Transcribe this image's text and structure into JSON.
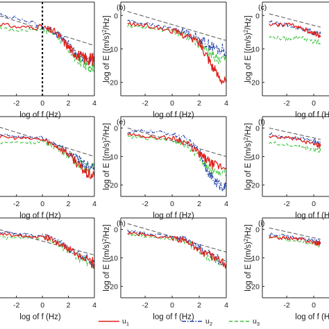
{
  "chart_data": {
    "type": "line",
    "x_axis": {
      "label": "log of f (Hz)",
      "ticks": [
        -2,
        0,
        2,
        4
      ],
      "range": [
        -3.8,
        4
      ]
    },
    "y_axis": {
      "label_main": "log of E [(m/s)",
      "label_sup": "2",
      "label_end": "/Hz]",
      "ticks": [
        0,
        -10,
        -20
      ],
      "range": [
        -24,
        4
      ]
    },
    "legend": {
      "placement": "bottom",
      "items": [
        {
          "name": "u",
          "sub": "1",
          "color": "#e0201a",
          "dash": "solid"
        },
        {
          "name": "u",
          "sub": "2",
          "color": "#1f3fa8",
          "dash": "dashdot"
        },
        {
          "name": "u",
          "sub": "3",
          "color": "#3cc43c",
          "dash": "dashed"
        }
      ]
    },
    "colors": {
      "u1": "#e0201a",
      "u2": "#1f3fa8",
      "u3": "#3cc43c",
      "reference": "#555555",
      "marker": "#000000"
    },
    "reference_line": {
      "type": "-5/3 slope",
      "style": "dashed"
    },
    "panels": [
      {
        "label": "",
        "col": 0,
        "row": 0,
        "vline_x": 0,
        "series": {
          "u1": {
            "x": [
              -3.8,
              -2,
              0,
              1,
              1.8,
              2.4,
              3,
              3.6,
              4
            ],
            "y": [
              -2,
              -3.5,
              -3.5,
              -5,
              -8.5,
              -11,
              -12.5,
              -13,
              -13
            ]
          },
          "u2": {
            "x": [
              -3.8,
              -2,
              0,
              1,
              1.8,
              2.4,
              3,
              3.6,
              4
            ],
            "y": [
              1,
              -0.8,
              -3.2,
              -5,
              -8,
              -10.5,
              -12.5,
              -13,
              -13
            ]
          },
          "u3": {
            "x": [
              -3.8,
              -2,
              0,
              1,
              1.8,
              2.4,
              3,
              3.6,
              4
            ],
            "y": [
              -3,
              -4.5,
              -4,
              -5.5,
              -9,
              -12,
              -14,
              -15,
              -15
            ]
          }
        },
        "reference": {
          "x0": -3.8,
          "y0": 0.5,
          "x1": 4,
          "y1": -9
        }
      },
      {
        "label": "(b)",
        "col": 1,
        "row": 0,
        "series": {
          "u1": {
            "x": [
              -3.3,
              -2,
              0,
              1,
              2,
              2.6,
              3.2,
              4
            ],
            "y": [
              -2.5,
              -3,
              -4.5,
              -6,
              -8,
              -12,
              -17,
              -20
            ]
          },
          "u2": {
            "x": [
              -3.3,
              -2,
              0,
              1,
              2,
              2.6,
              3.2,
              4
            ],
            "y": [
              -1.5,
              -2.5,
              -4,
              -5,
              -7,
              -8.5,
              -10,
              -10.5
            ]
          },
          "u3": {
            "x": [
              -3.3,
              -2,
              0,
              1,
              2,
              2.6,
              3.2,
              4
            ],
            "y": [
              -3,
              -3.5,
              -4.5,
              -6,
              -8.5,
              -11,
              -12.5,
              -13
            ]
          }
        },
        "reference": {
          "x0": -3.3,
          "y0": 1.2,
          "x1": 4,
          "y1": -7.5
        }
      },
      {
        "label": "(c)",
        "col": 2,
        "row": 0,
        "series": {
          "u1": {
            "x": [
              -3.3,
              -2,
              -1,
              0,
              0.5
            ],
            "y": [
              -3,
              -2.5,
              -3.5,
              -5.5,
              -6
            ]
          },
          "u2": {
            "x": [
              -3.3,
              -2,
              -1,
              0,
              0.5
            ],
            "y": [
              -2,
              -3,
              -4,
              -5,
              -5.5
            ]
          },
          "u3": {
            "x": [
              -3.3,
              -2,
              -1,
              0,
              0.5
            ],
            "y": [
              -6.5,
              -7,
              -6.5,
              -8,
              -8
            ]
          }
        },
        "reference": {
          "x0": -3.3,
          "y0": 0.5,
          "x1": 0.5,
          "y1": -3.5
        }
      },
      {
        "label": "",
        "col": 0,
        "row": 1,
        "series": {
          "u1": {
            "x": [
              -3.8,
              -2,
              0,
              1,
              2,
              2.8,
              3.4,
              4
            ],
            "y": [
              -3,
              -3.5,
              -4,
              -6,
              -9,
              -13,
              -16,
              -17
            ]
          },
          "u2": {
            "x": [
              -3.8,
              -2,
              0,
              1,
              2,
              2.8,
              3.4,
              4
            ],
            "y": [
              -2,
              -3,
              -3.5,
              -5.5,
              -8.5,
              -11,
              -13,
              -13.5
            ]
          },
          "u3": {
            "x": [
              -3.8,
              -2,
              0,
              1,
              2,
              2.8,
              3.4,
              4
            ],
            "y": [
              -5,
              -5,
              -5,
              -6.5,
              -9.5,
              -12.5,
              -14,
              -14
            ]
          }
        },
        "reference": {
          "x0": -3.8,
          "y0": 1,
          "x1": 4,
          "y1": -10
        }
      },
      {
        "label": "(e)",
        "col": 1,
        "row": 1,
        "series": {
          "u1": {
            "x": [
              -3.3,
              -2,
              0,
              1,
              2,
              2.5,
              3,
              4
            ],
            "y": [
              -2,
              -3,
              -3.5,
              -5,
              -9,
              -11,
              -13,
              -14
            ]
          },
          "u2": {
            "x": [
              -3.3,
              -2,
              0,
              1,
              2,
              2.5,
              3,
              3.5,
              4
            ],
            "y": [
              -1.5,
              -1,
              -2,
              -4,
              -8,
              -14,
              -18,
              -20,
              -21
            ]
          },
          "u3": {
            "x": [
              -3.3,
              -2,
              0,
              1,
              2,
              2.5,
              3,
              4
            ],
            "y": [
              -3,
              -3.5,
              -4,
              -6,
              -10,
              -13,
              -15.5,
              -16.5
            ]
          }
        },
        "reference": {
          "x0": -3.3,
          "y0": 0,
          "x1": 4,
          "y1": -10
        }
      },
      {
        "label": "(f)",
        "col": 2,
        "row": 1,
        "series": {
          "u1": {
            "x": [
              -3.3,
              -2,
              -1,
              0,
              0.5
            ],
            "y": [
              -3,
              -3.5,
              -4,
              -6,
              -6.5
            ]
          },
          "u2": {
            "x": [
              -3.3,
              -2,
              -1,
              0,
              0.5
            ],
            "y": [
              -2,
              -3.5,
              -3.5,
              -4.5,
              -5
            ]
          },
          "u3": {
            "x": [
              -3.3,
              -2,
              -1,
              0,
              0.5
            ],
            "y": [
              -5,
              -6,
              -6.5,
              -7.5,
              -8
            ]
          }
        },
        "reference": {
          "x0": -3.3,
          "y0": 0,
          "x1": 0.5,
          "y1": -4
        }
      },
      {
        "label": "",
        "col": 0,
        "row": 2,
        "series": {
          "u1": {
            "x": [
              -3.8,
              -2,
              0,
              1,
              2,
              3,
              4
            ],
            "y": [
              -1.5,
              -2,
              -2.5,
              -4,
              -7,
              -10,
              -12
            ]
          },
          "u2": {
            "x": [
              -3.8,
              -2,
              0,
              1,
              2,
              3,
              4
            ],
            "y": [
              -1,
              -1.5,
              -2,
              -3.5,
              -6.5,
              -9.5,
              -11.5
            ]
          },
          "u3": {
            "x": [
              -3.8,
              -2,
              0,
              1,
              2,
              3,
              4
            ],
            "y": [
              -3,
              -3,
              -3,
              -4.5,
              -7.5,
              -10.5,
              -12.5
            ]
          }
        },
        "reference": {
          "x0": -3.8,
          "y0": 0.5,
          "x1": 4,
          "y1": -9
        }
      },
      {
        "label": "(h)",
        "col": 1,
        "row": 2,
        "series": {
          "u1": {
            "x": [
              -3.3,
              -2,
              0,
              1,
              2,
              3,
              4
            ],
            "y": [
              -1,
              -2,
              -3,
              -4,
              -7,
              -10,
              -12
            ]
          },
          "u2": {
            "x": [
              -3.3,
              -2,
              0,
              1,
              2,
              3,
              4
            ],
            "y": [
              -0.5,
              -1.5,
              -2.5,
              -3.5,
              -6.5,
              -9.5,
              -11.5
            ]
          },
          "u3": {
            "x": [
              -3.3,
              -2,
              0,
              1,
              2,
              3,
              4
            ],
            "y": [
              -1.5,
              -2.5,
              -3,
              -4.5,
              -7.5,
              -10.5,
              -12
            ]
          }
        },
        "reference": {
          "x0": -3.3,
          "y0": 2,
          "x1": 4,
          "y1": -8
        }
      },
      {
        "label": "(i)",
        "col": 2,
        "row": 2,
        "series": {
          "u1": {
            "x": [
              -3.3,
              -2,
              -1,
              0,
              0.5
            ],
            "y": [
              -3,
              -3,
              -3.5,
              -4.5,
              -5
            ]
          },
          "u2": {
            "x": [
              -3.3,
              -2,
              -1,
              0,
              0.5
            ],
            "y": [
              -1.5,
              -2.5,
              -3,
              -4,
              -4.5
            ]
          },
          "u3": {
            "x": [
              -3.3,
              -2,
              -1,
              0,
              0.5
            ],
            "y": [
              -2.5,
              -3.5,
              -4,
              -5,
              -5.5
            ]
          }
        },
        "reference": {
          "x0": -3.3,
          "y0": 0.5,
          "x1": 0.5,
          "y1": -3.5
        }
      }
    ]
  }
}
